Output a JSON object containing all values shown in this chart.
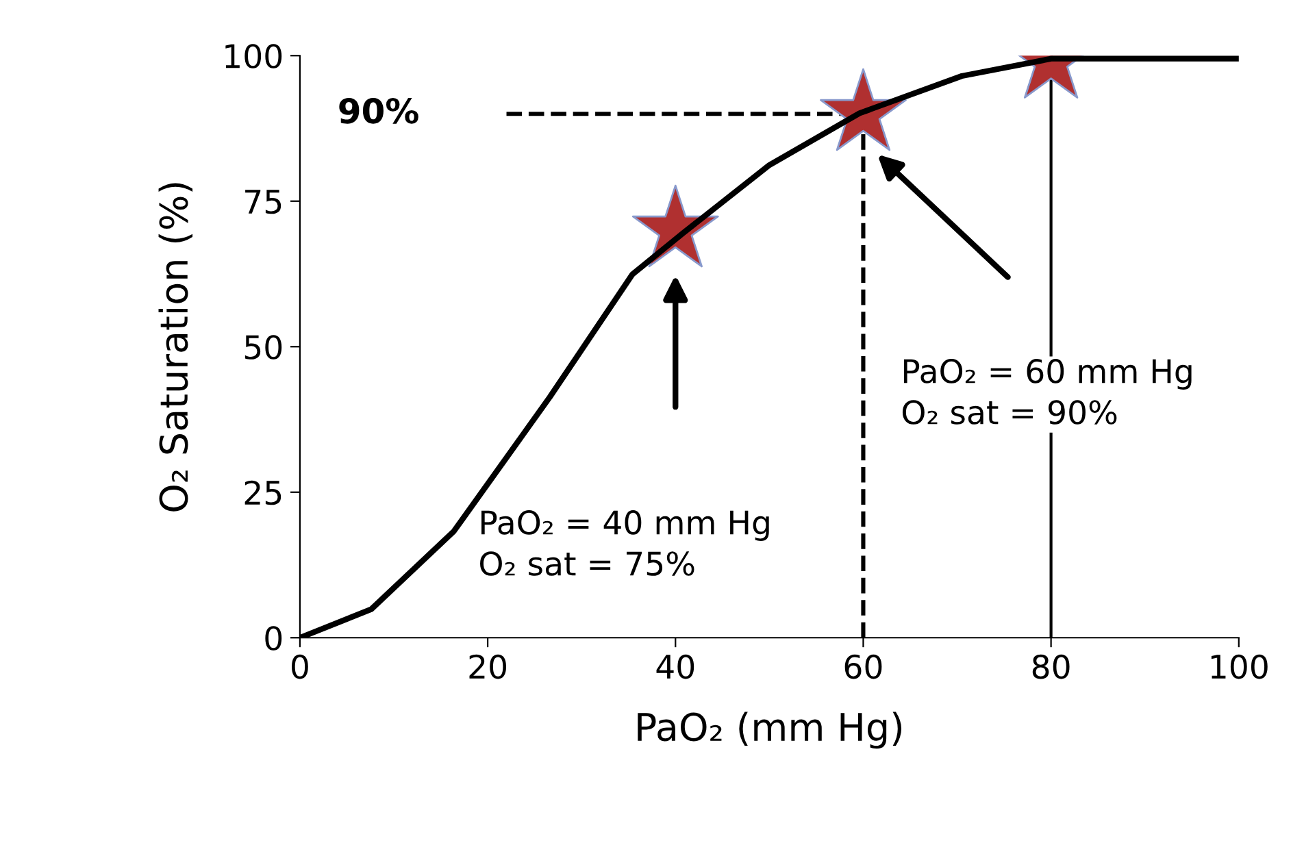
{
  "chart_data": {
    "type": "line",
    "xlabel": "PaO₂ (mm Hg)",
    "ylabel": "O₂ Saturation (%)",
    "xlim": [
      0,
      100
    ],
    "ylim": [
      0,
      100
    ],
    "xticks": [
      0,
      20,
      40,
      60,
      80,
      100
    ],
    "yticks": [
      0,
      25,
      50,
      75,
      100
    ],
    "grid": false,
    "legend": false,
    "series": [
      {
        "color": "#000000",
        "line_style": "solid",
        "x": [
          0,
          7.6,
          16.4,
          26.6,
          35.4,
          40.8,
          50,
          59.6,
          70.5,
          80.1,
          100
        ],
        "values": [
          0,
          4.9,
          18.3,
          41.3,
          62.4,
          69.5,
          81.2,
          90.1,
          96.5,
          99.5,
          99.5
        ]
      },
      {
        "type": "scatter",
        "color": "#b03030",
        "marker": "star",
        "x": [
          40,
          60,
          80
        ],
        "values": [
          70,
          90,
          99
        ]
      }
    ],
    "ref_lines": [
      {
        "axis": "y",
        "value": 90,
        "label": "90%",
        "line_style": "dashed",
        "color": "#000000"
      },
      {
        "axis": "x",
        "value": 60,
        "line_style": "dashed",
        "color": "#000000"
      },
      {
        "axis": "x",
        "value": 80,
        "line_style": "solid",
        "color": "#000000"
      }
    ],
    "annotations": [
      "PaO₂ = 40 mm Hg\nO₂ sat = 75%",
      "PaO₂ = 60 mm Hg\nO₂ sat = 90%"
    ]
  }
}
